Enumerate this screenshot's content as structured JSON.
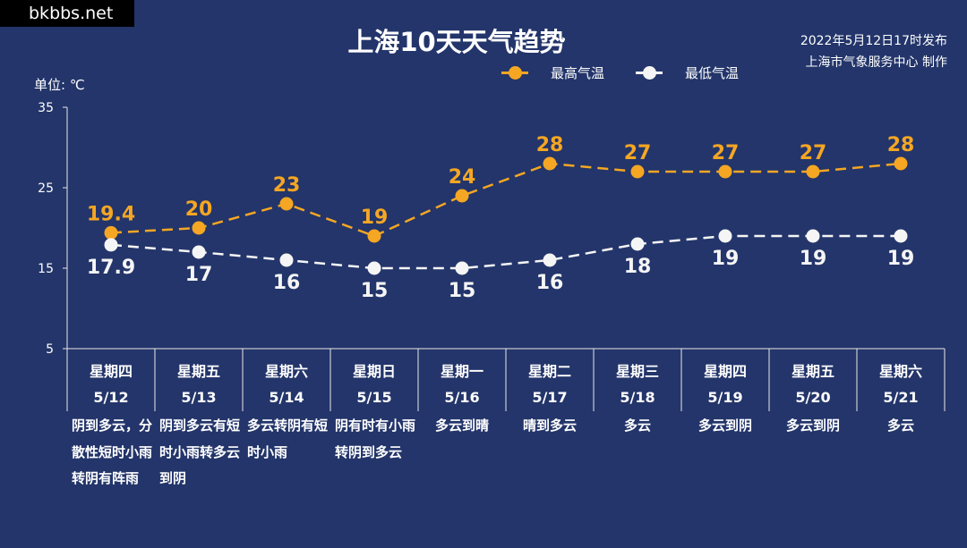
{
  "watermark": "bkbbs.net",
  "title": "上海10天天气趋势",
  "issuer": {
    "line1": "2022年5月12日17时发布",
    "line2": "上海市气象服务中心 制作"
  },
  "unit_label": "单位: ℃",
  "colors": {
    "background": "#23356a",
    "high": "#f5a623",
    "low": "#f5f5f5",
    "axis": "#e8e8e8"
  },
  "chart_data": {
    "type": "line",
    "title": "上海10天天气趋势",
    "ylabel": "单位: ℃",
    "ylim": [
      5,
      35
    ],
    "yticks": [
      5,
      15,
      25,
      35
    ],
    "legend_position": "top-center",
    "grid": false,
    "categories": [
      {
        "weekday": "星期四",
        "date": "5/12",
        "weather": "阴到多云，分散性短时小雨转阴有阵雨"
      },
      {
        "weekday": "星期五",
        "date": "5/13",
        "weather": "阴到多云有短时小雨转多云到阴"
      },
      {
        "weekday": "星期六",
        "date": "5/14",
        "weather": "多云转阴有短时小雨"
      },
      {
        "weekday": "星期日",
        "date": "5/15",
        "weather": "阴有时有小雨转阴到多云"
      },
      {
        "weekday": "星期一",
        "date": "5/16",
        "weather": "多云到晴"
      },
      {
        "weekday": "星期二",
        "date": "5/17",
        "weather": "晴到多云"
      },
      {
        "weekday": "星期三",
        "date": "5/18",
        "weather": "多云"
      },
      {
        "weekday": "星期四",
        "date": "5/19",
        "weather": "多云到阴"
      },
      {
        "weekday": "星期五",
        "date": "5/20",
        "weather": "多云到阴"
      },
      {
        "weekday": "星期六",
        "date": "5/21",
        "weather": "多云"
      }
    ],
    "series": [
      {
        "name": "最高气温",
        "color": "#f5a623",
        "values": [
          19.4,
          20,
          23,
          19,
          24,
          28,
          27,
          27,
          27,
          28
        ],
        "labels": [
          "19.4",
          "20",
          "23",
          "19",
          "24",
          "28",
          "27",
          "27",
          "27",
          "28"
        ]
      },
      {
        "name": "最低气温",
        "color": "#f5f5f5",
        "values": [
          17.9,
          17,
          16,
          15,
          15,
          16,
          18,
          19,
          19,
          19
        ],
        "labels": [
          "17.9",
          "17",
          "16",
          "15",
          "15",
          "16",
          "18",
          "19",
          "19",
          "19"
        ]
      }
    ]
  }
}
